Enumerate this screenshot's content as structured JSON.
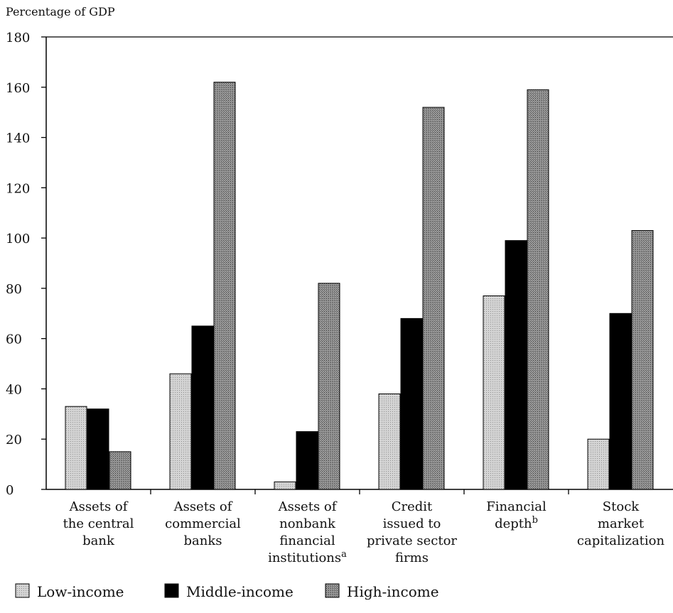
{
  "chart_data": {
    "type": "bar",
    "ylabel": "Percentage of GDP",
    "ylim": [
      0,
      180
    ],
    "yticks": [
      "0",
      "20",
      "40",
      "60",
      "80",
      "100",
      "120",
      "140",
      "160",
      "180"
    ],
    "categories": [
      {
        "lines": [
          "Assets of",
          "the central",
          "bank"
        ]
      },
      {
        "lines": [
          "Assets of",
          "commercial",
          "banks"
        ]
      },
      {
        "lines": [
          "Assets of",
          "nonbank",
          "financial",
          "institutions"
        ],
        "sup": "a"
      },
      {
        "lines": [
          "Credit",
          "issued to",
          "private sector",
          "firms"
        ]
      },
      {
        "lines": [
          "Financial",
          "depth"
        ],
        "sup": "b"
      },
      {
        "lines": [
          "Stock",
          "market",
          "capitalization"
        ]
      }
    ],
    "series": [
      {
        "name": "Low-income",
        "color": "#c8c8c8",
        "values": [
          33,
          46,
          3,
          38,
          77,
          20
        ]
      },
      {
        "name": "Middle-income",
        "color": "#000000",
        "values": [
          32,
          65,
          23,
          68,
          99,
          70
        ]
      },
      {
        "name": "High-income",
        "color": "#8a8a8a",
        "values": [
          15,
          162,
          82,
          152,
          159,
          103
        ]
      }
    ],
    "legend_position": "bottom-left",
    "grid": false
  }
}
